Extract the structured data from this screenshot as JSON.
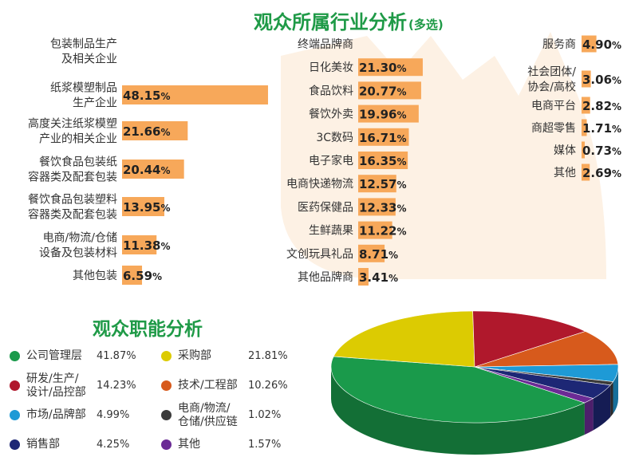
{
  "titles": {
    "industry": "观众所属行业分析",
    "industry_note": "(多选)",
    "function": "观众职能分析"
  },
  "colors": {
    "bar": "#f7a85a",
    "title": "#1f9a47",
    "deco": "#fdf1e4"
  },
  "chart_data": [
    {
      "type": "bar",
      "orientation": "horizontal",
      "title": "观众所属行业分析",
      "note": "(多选)",
      "groups": [
        {
          "categories": [
            "包装制品生产\n及相关企业",
            "纸浆模塑制品\n生产企业",
            "高度关注纸浆模塑\n产业的相关企业",
            "餐饮食品包装纸\n容器类及配套包装",
            "餐饮食品包装塑料\n容器类及配套包装",
            "电商/物流/仓储\n设备及包装材料",
            "其他包装"
          ],
          "values": [
            null,
            48.15,
            21.66,
            20.44,
            13.95,
            11.38,
            6.59
          ],
          "labels": [
            "",
            "48.15%",
            "21.66%",
            "20.44%",
            "13.95%",
            "11.38%",
            "6.59%"
          ]
        },
        {
          "categories": [
            "终端品牌商",
            "日化美妆",
            "食品饮料",
            "餐饮外卖",
            "3C数码",
            "电子家电",
            "电商快递物流",
            "医药保健品",
            "生鲜蔬果",
            "文创玩具礼品",
            "其他品牌商"
          ],
          "values": [
            null,
            21.3,
            20.77,
            19.96,
            16.71,
            16.35,
            12.57,
            12.33,
            11.22,
            8.71,
            3.41
          ],
          "labels": [
            "",
            "21.30%",
            "20.77%",
            "19.96%",
            "16.71%",
            "16.35%",
            "12.57%",
            "12.33%",
            "11.22%",
            "8.71%",
            "3.41%"
          ]
        },
        {
          "categories": [
            "服务商",
            "社会团体/\n协会/高校",
            "电商平台",
            "商超零售",
            "媒体",
            "其他"
          ],
          "values": [
            4.9,
            3.06,
            2.82,
            1.71,
            0.73,
            2.69
          ],
          "labels": [
            "4.90%",
            "3.06%",
            "2.82%",
            "1.71%",
            "0.73%",
            "2.69%"
          ]
        }
      ]
    },
    {
      "type": "pie",
      "style": "3d",
      "title": "观众职能分析",
      "slices": [
        {
          "name": "公司管理层",
          "value": 41.87,
          "label": "41.87%",
          "color": "#1a9a4b"
        },
        {
          "name": "采购部",
          "value": 21.81,
          "label": "21.81%",
          "color": "#dccb02"
        },
        {
          "name": "研发/生产/\n设计/品控部",
          "value": 14.23,
          "label": "14.23%",
          "color": "#b0182c"
        },
        {
          "name": "技术/工程部",
          "value": 10.26,
          "label": "10.26%",
          "color": "#d75a1c"
        },
        {
          "name": "市场/品牌部",
          "value": 4.99,
          "label": "4.99%",
          "color": "#1e9ad6"
        },
        {
          "name": "电商/物流/\n仓储/供应链",
          "value": 1.02,
          "label": "1.02%",
          "color": "#3b3b3b"
        },
        {
          "name": "销售部",
          "value": 4.25,
          "label": "4.25%",
          "color": "#1d2775"
        },
        {
          "name": "其他",
          "value": 1.57,
          "label": "1.57%",
          "color": "#6b2b95"
        }
      ]
    }
  ]
}
